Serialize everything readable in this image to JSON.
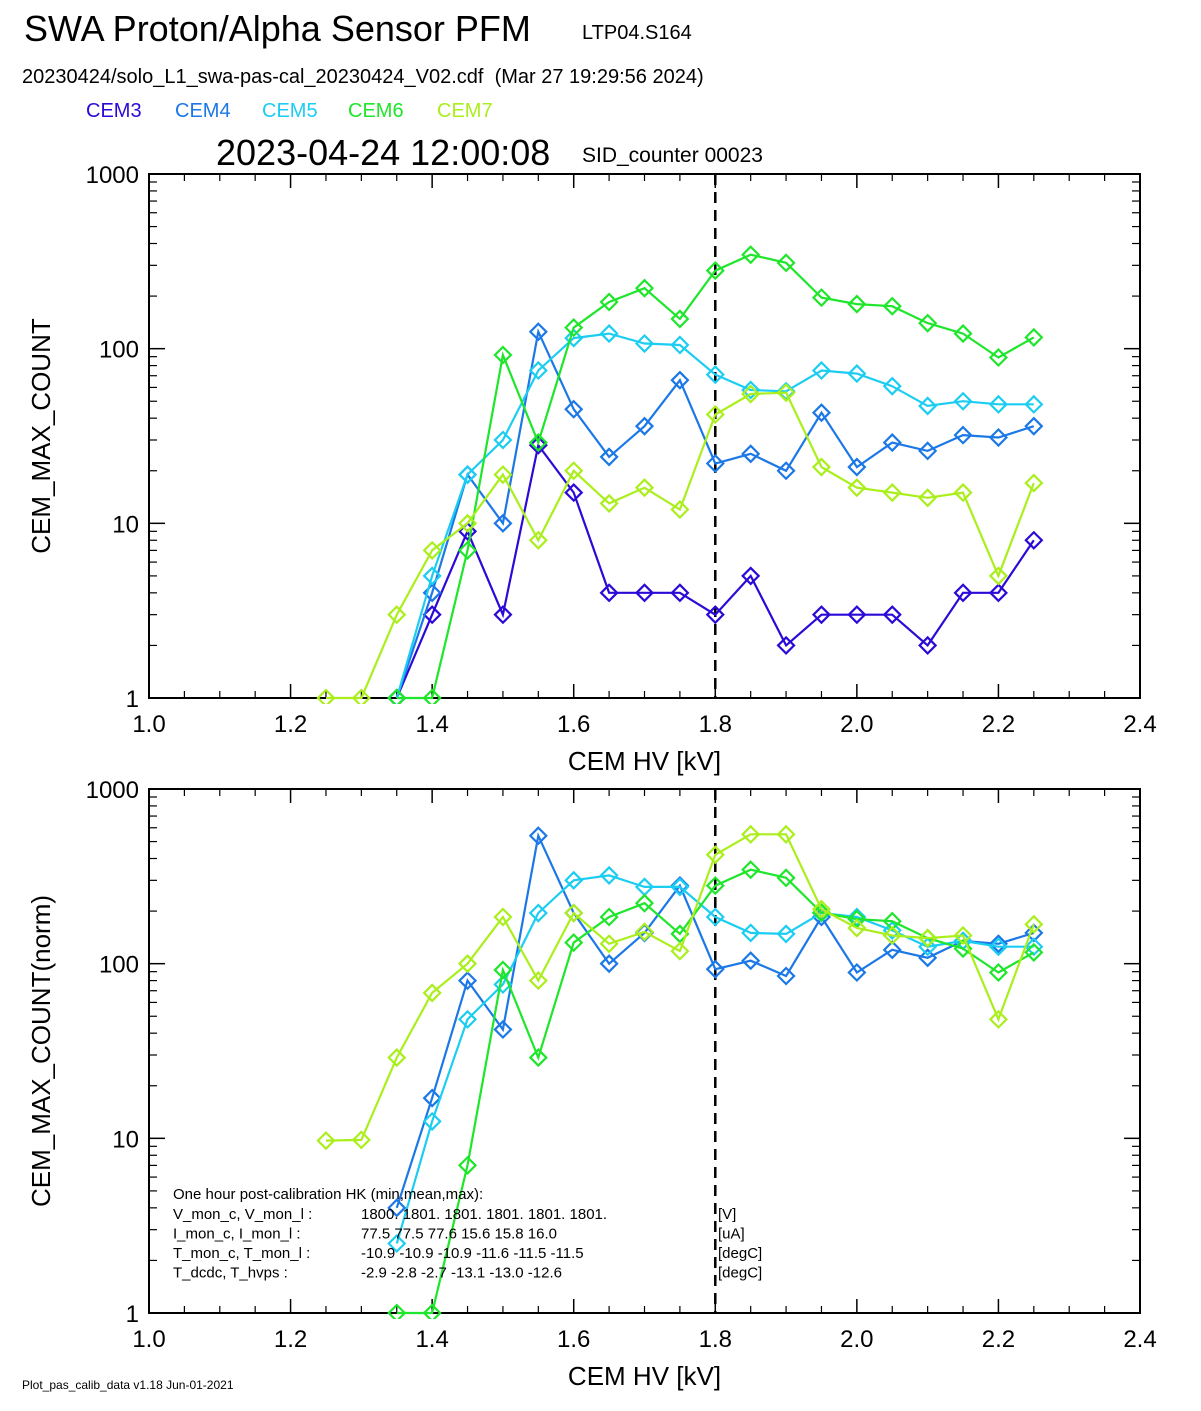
{
  "header": {
    "title": "SWA Proton/Alpha Sensor PFM",
    "subtitle": "LTP04.S164",
    "file_line": "20230424/solo_L1_swa-pas-cal_20230424_V02.cdf  (Mar 27 19:29:56 2024)",
    "timestamp": "2023-04-24 12:00:08",
    "sid_counter": "SID_counter 00023"
  },
  "legend": [
    {
      "name": "CEM3",
      "color": "#2b0ad8"
    },
    {
      "name": "CEM4",
      "color": "#1b78e6"
    },
    {
      "name": "CEM5",
      "color": "#1ccdf2"
    },
    {
      "name": "CEM6",
      "color": "#1ee62a"
    },
    {
      "name": "CEM7",
      "color": "#aaef1c"
    }
  ],
  "hk_box": {
    "heading": "One hour post-calibration HK (min,mean,max):",
    "rows": [
      {
        "label": "V_mon_c, V_mon_l :",
        "values": "1800.  1801.  1801.       1801.  1801.  1801.",
        "unit": "[V]"
      },
      {
        "label": "I_mon_c,  I_mon_l :",
        "values": "77.5   77.5   77.6         15.6   15.8   16.0",
        "unit": "[uA]"
      },
      {
        "label": "T_mon_c, T_mon_l :",
        "values": "-10.9  -10.9  -10.9         -11.6  -11.5  -11.5",
        "unit": "[degC]"
      },
      {
        "label": "T_dcdc,    T_hvps :",
        "values": "-2.9   -2.8   -2.7          -13.1  -13.0  -12.6",
        "unit": "[degC]"
      }
    ]
  },
  "footer": "Plot_pas_calib_data v1.18 Jun-01-2021",
  "chart_data": [
    {
      "type": "line",
      "xlabel": "CEM HV [kV]",
      "ylabel": "CEM_MAX_COUNT",
      "xlim": [
        1.0,
        2.4
      ],
      "ylim": [
        1,
        1000
      ],
      "yscale": "log",
      "xticks": [
        "1.0",
        "1.2",
        "1.4",
        "1.6",
        "1.8",
        "2.0",
        "2.2",
        "2.4"
      ],
      "yticks": [
        "1",
        "10",
        "100",
        "1000"
      ],
      "marker": "diamond",
      "vline": 1.8,
      "series": [
        {
          "name": "CEM3",
          "color": "#2b0ad8",
          "x": [
            1.35,
            1.4,
            1.45,
            1.5,
            1.55,
            1.6,
            1.65,
            1.7,
            1.75,
            1.8,
            1.85,
            1.9,
            1.95,
            2.0,
            2.05,
            2.1,
            2.15,
            2.2,
            2.25
          ],
          "y": [
            1,
            3,
            9,
            3,
            28,
            15,
            4,
            4,
            4,
            3,
            5,
            2,
            3,
            3,
            3,
            2,
            4,
            4,
            8
          ]
        },
        {
          "name": "CEM4",
          "color": "#1b78e6",
          "x": [
            1.35,
            1.4,
            1.45,
            1.5,
            1.55,
            1.6,
            1.65,
            1.7,
            1.75,
            1.8,
            1.85,
            1.9,
            1.95,
            2.0,
            2.05,
            2.1,
            2.15,
            2.2,
            2.25
          ],
          "y": [
            1,
            4,
            19,
            10,
            125,
            45,
            24,
            36,
            66,
            22,
            25,
            20,
            43,
            21,
            29,
            26,
            32,
            31,
            36
          ]
        },
        {
          "name": "CEM5",
          "color": "#1ccdf2",
          "x": [
            1.35,
            1.4,
            1.45,
            1.5,
            1.55,
            1.6,
            1.65,
            1.7,
            1.75,
            1.8,
            1.85,
            1.9,
            1.95,
            2.0,
            2.05,
            2.1,
            2.15,
            2.2,
            2.25
          ],
          "y": [
            1,
            5,
            19,
            30,
            75,
            115,
            122,
            107,
            105,
            71,
            58,
            57,
            75,
            72,
            61,
            47,
            50,
            48,
            48
          ]
        },
        {
          "name": "CEM6",
          "color": "#1ee62a",
          "x": [
            1.35,
            1.4,
            1.45,
            1.5,
            1.55,
            1.6,
            1.65,
            1.7,
            1.75,
            1.8,
            1.85,
            1.9,
            1.95,
            2.0,
            2.05,
            2.1,
            2.15,
            2.2,
            2.25
          ],
          "y": [
            1,
            1,
            7,
            92,
            29,
            132,
            185,
            222,
            148,
            280,
            345,
            310,
            196,
            180,
            175,
            140,
            122,
            89,
            116
          ]
        },
        {
          "name": "CEM7",
          "color": "#aaef1c",
          "x": [
            1.25,
            1.3,
            1.35,
            1.4,
            1.45,
            1.5,
            1.55,
            1.6,
            1.65,
            1.7,
            1.75,
            1.8,
            1.85,
            1.9,
            1.95,
            2.0,
            2.05,
            2.1,
            2.15,
            2.2,
            2.25
          ],
          "y": [
            1,
            1,
            3,
            7,
            10,
            19,
            8,
            20,
            13,
            16,
            12,
            42,
            55,
            56,
            21,
            16,
            15,
            14,
            15,
            5,
            17
          ]
        }
      ]
    },
    {
      "type": "line",
      "xlabel": "CEM HV [kV]",
      "ylabel": "CEM_MAX_COUNT(norm)",
      "xlim": [
        1.0,
        2.4
      ],
      "ylim": [
        1,
        1000
      ],
      "yscale": "log",
      "xticks": [
        "1.0",
        "1.2",
        "1.4",
        "1.6",
        "1.8",
        "2.0",
        "2.2",
        "2.4"
      ],
      "yticks": [
        "1",
        "10",
        "100",
        "1000"
      ],
      "marker": "diamond",
      "vline": 1.8,
      "series": [
        {
          "name": "CEM4",
          "color": "#1b78e6",
          "x": [
            1.35,
            1.4,
            1.45,
            1.5,
            1.55,
            1.6,
            1.65,
            1.7,
            1.75,
            1.8,
            1.85,
            1.9,
            1.95,
            2.0,
            2.05,
            2.1,
            2.15,
            2.2,
            2.25
          ],
          "y": [
            4,
            17,
            80,
            42,
            540,
            195,
            100,
            150,
            280,
            93,
            104,
            85,
            185,
            89,
            120,
            108,
            135,
            130,
            150
          ]
        },
        {
          "name": "CEM5",
          "color": "#1ccdf2",
          "x": [
            1.35,
            1.4,
            1.45,
            1.5,
            1.55,
            1.6,
            1.65,
            1.7,
            1.75,
            1.8,
            1.85,
            1.9,
            1.95,
            2.0,
            2.05,
            2.1,
            2.15,
            2.2,
            2.25
          ],
          "y": [
            2.5,
            12.5,
            48,
            76,
            195,
            300,
            320,
            275,
            275,
            185,
            150,
            148,
            195,
            185,
            155,
            125,
            135,
            125,
            125
          ]
        },
        {
          "name": "CEM6",
          "color": "#1ee62a",
          "x": [
            1.35,
            1.4,
            1.45,
            1.5,
            1.55,
            1.6,
            1.65,
            1.7,
            1.75,
            1.8,
            1.85,
            1.9,
            1.95,
            2.0,
            2.05,
            2.1,
            2.15,
            2.2,
            2.25
          ],
          "y": [
            1,
            1,
            7,
            92,
            29,
            132,
            185,
            222,
            148,
            280,
            345,
            310,
            196,
            180,
            175,
            140,
            122,
            89,
            116
          ]
        },
        {
          "name": "CEM7",
          "color": "#aaef1c",
          "x": [
            1.25,
            1.3,
            1.35,
            1.4,
            1.45,
            1.5,
            1.55,
            1.6,
            1.65,
            1.7,
            1.75,
            1.8,
            1.85,
            1.9,
            1.95,
            2.0,
            2.05,
            2.1,
            2.15,
            2.2,
            2.25
          ],
          "y": [
            9.7,
            9.8,
            29,
            68,
            100,
            185,
            80,
            195,
            130,
            152,
            118,
            420,
            550,
            550,
            205,
            160,
            145,
            140,
            145,
            48,
            168
          ]
        }
      ]
    }
  ]
}
